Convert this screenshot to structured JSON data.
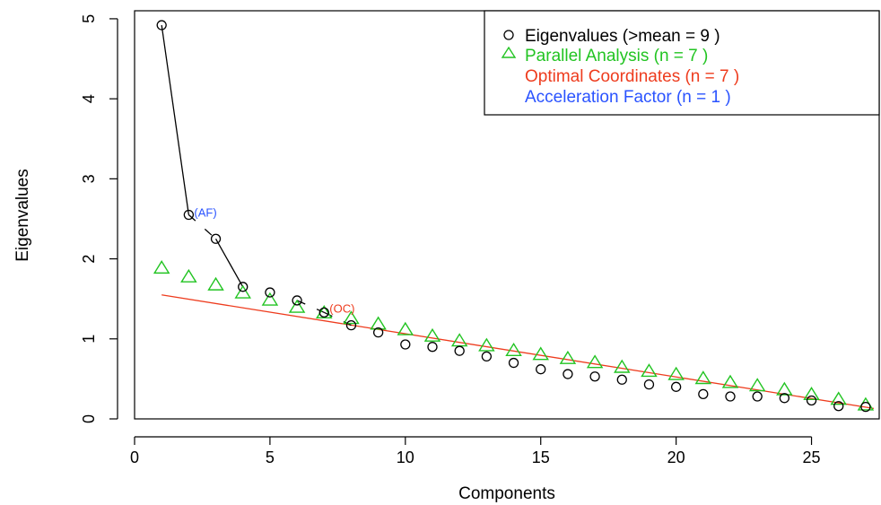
{
  "chart_data": {
    "type": "scatter",
    "xlabel": "Components",
    "ylabel": "Eigenvalues",
    "xlim": [
      0,
      27.5
    ],
    "ylim": [
      0,
      5.1
    ],
    "xticks": [
      "0",
      "5",
      "10",
      "15",
      "20",
      "25"
    ],
    "yticks": [
      "0",
      "1",
      "2",
      "3",
      "4",
      "5"
    ],
    "series": [
      {
        "name": "Eigenvalues (>mean  =  9 )",
        "marker": "circle",
        "color": "#000000",
        "x": [
          1,
          2,
          3,
          4,
          5,
          6,
          7,
          8,
          9,
          10,
          11,
          12,
          13,
          14,
          15,
          16,
          17,
          18,
          19,
          20,
          21,
          22,
          23,
          24,
          25,
          26,
          27
        ],
        "y": [
          4.92,
          2.55,
          2.25,
          1.65,
          1.58,
          1.48,
          1.33,
          1.17,
          1.08,
          0.93,
          0.9,
          0.85,
          0.78,
          0.7,
          0.62,
          0.56,
          0.53,
          0.49,
          0.43,
          0.4,
          0.31,
          0.28,
          0.28,
          0.26,
          0.23,
          0.16,
          0.15
        ]
      },
      {
        "name": "Parallel Analysis (n =  7 )",
        "marker": "triangle",
        "color": "#22c422",
        "x": [
          1,
          2,
          3,
          4,
          5,
          6,
          7,
          8,
          9,
          10,
          11,
          12,
          13,
          14,
          15,
          16,
          17,
          18,
          19,
          20,
          21,
          22,
          23,
          24,
          25,
          26,
          27
        ],
        "y": [
          1.89,
          1.78,
          1.68,
          1.58,
          1.49,
          1.4,
          1.33,
          1.26,
          1.19,
          1.12,
          1.04,
          0.98,
          0.92,
          0.86,
          0.81,
          0.76,
          0.71,
          0.65,
          0.6,
          0.56,
          0.51,
          0.46,
          0.42,
          0.37,
          0.31,
          0.25,
          0.18
        ]
      },
      {
        "name": "Optimal Coordinates (n =  7 )",
        "marker": "line",
        "color": "#ee3c1e",
        "x": [
          1,
          27.3
        ],
        "y": [
          1.55,
          0.13
        ]
      },
      {
        "name": "Acceleration Factor (n =  1 )",
        "marker": "none",
        "color": "#2a53ff"
      }
    ],
    "scree_line": {
      "color": "#000000",
      "segments": [
        [
          1,
          4.92,
          2,
          2.55
        ],
        [
          3,
          2.25,
          4,
          1.65
        ]
      ],
      "dashes": [
        [
          2,
          2.55,
          3,
          2.25
        ],
        [
          6,
          1.48,
          7,
          1.33
        ],
        [
          7,
          1.33,
          8,
          1.17
        ]
      ]
    },
    "annotations": [
      {
        "text": "(AF)",
        "x": 2.2,
        "y": 2.55,
        "color": "#2a53ff"
      },
      {
        "text": "(OC)",
        "x": 7.2,
        "y": 1.35,
        "color": "#ee3c1e"
      }
    ],
    "legend": "top-right",
    "grid": false
  }
}
